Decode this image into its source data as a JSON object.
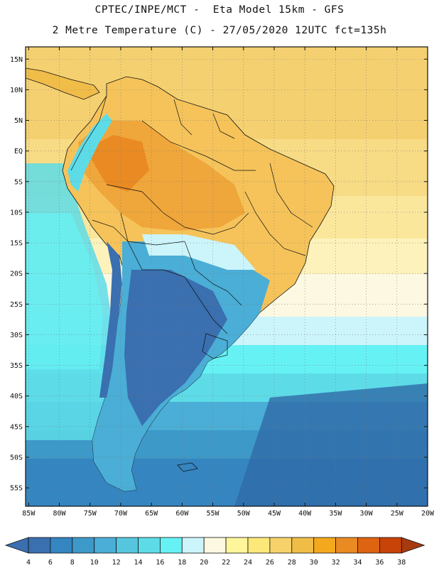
{
  "header": {
    "line1": "CPTEC/INPE/MCT -  Eta Model 15km - GFS",
    "line2": "2 Metre Temperature (C) - 27/05/2020 12UTC fct=135h"
  },
  "map": {
    "lat_ticks": [
      "15N",
      "10N",
      "5N",
      "EQ",
      "5S",
      "10S",
      "15S",
      "20S",
      "25S",
      "30S",
      "35S",
      "40S",
      "45S",
      "50S",
      "55S"
    ],
    "lon_ticks": [
      "85W",
      "80W",
      "75W",
      "70W",
      "65W",
      "60W",
      "55W",
      "50W",
      "45W",
      "40W",
      "35W",
      "30W",
      "25W",
      "20W"
    ],
    "lat_range": [
      17,
      -58
    ],
    "lon_range": [
      -85.5,
      -20
    ]
  },
  "colorbar": {
    "labels": [
      "4",
      "6",
      "8",
      "10",
      "12",
      "14",
      "16",
      "18",
      "20",
      "22",
      "24",
      "26",
      "28",
      "30",
      "32",
      "34",
      "36",
      "38"
    ],
    "colors": [
      "#3a6fb0",
      "#3585c0",
      "#3d99c8",
      "#4aaed6",
      "#55c6dd",
      "#5ddce8",
      "#66f2f4",
      "#ccf5fb",
      "#fcf8e2",
      "#fff59a",
      "#fde87a",
      "#f7d26a",
      "#f0bd49",
      "#f3a81d",
      "#e98a22",
      "#de6412",
      "#c84307",
      "#a83a10"
    ]
  }
}
